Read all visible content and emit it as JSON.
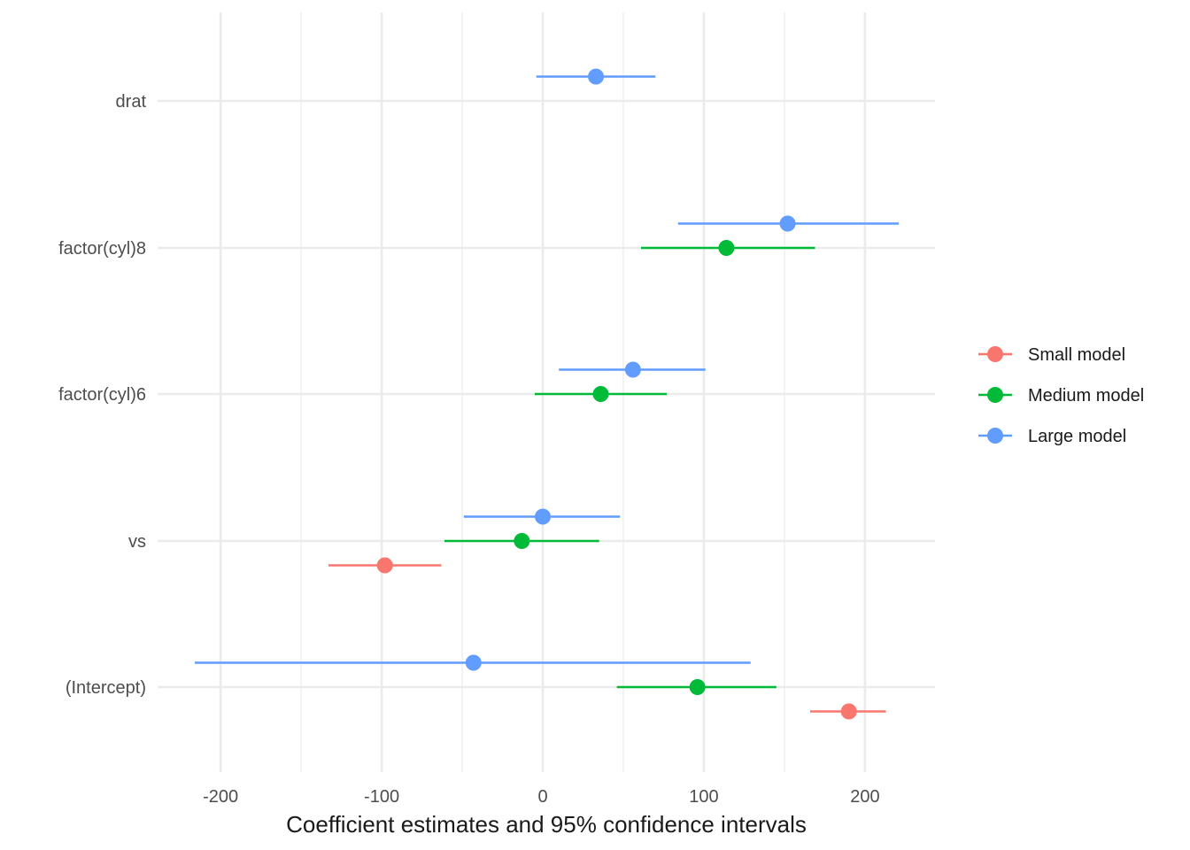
{
  "chart_data": {
    "type": "scatter",
    "subtype": "coefficient-plot",
    "title": "",
    "xlabel": "Coefficient estimates and 95% confidence intervals",
    "ylabel": "",
    "xlim": [
      -240,
      240
    ],
    "x_ticks": [
      -200,
      -100,
      0,
      100,
      200
    ],
    "x_tick_labels": [
      "-200",
      "-100",
      "0",
      "100",
      "200"
    ],
    "categories": [
      "(Intercept)",
      "vs",
      "factor(cyl)6",
      "factor(cyl)8",
      "drat"
    ],
    "grid": true,
    "legend_position": "right",
    "series": [
      {
        "name": "Small model",
        "color": "#F8766D",
        "points": [
          {
            "term": "(Intercept)",
            "estimate": 190,
            "low": 166,
            "high": 213
          },
          {
            "term": "vs",
            "estimate": -98,
            "low": -133,
            "high": -63
          }
        ]
      },
      {
        "name": "Medium model",
        "color": "#00BA38",
        "points": [
          {
            "term": "(Intercept)",
            "estimate": 96,
            "low": 46,
            "high": 145
          },
          {
            "term": "vs",
            "estimate": -13,
            "low": -61,
            "high": 35
          },
          {
            "term": "factor(cyl)6",
            "estimate": 36,
            "low": -5,
            "high": 77
          },
          {
            "term": "factor(cyl)8",
            "estimate": 114,
            "low": 61,
            "high": 169
          }
        ]
      },
      {
        "name": "Large model",
        "color": "#619CFF",
        "points": [
          {
            "term": "(Intercept)",
            "estimate": -43,
            "low": -216,
            "high": 129
          },
          {
            "term": "vs",
            "estimate": 0,
            "low": -49,
            "high": 48
          },
          {
            "term": "factor(cyl)6",
            "estimate": 56,
            "low": 10,
            "high": 101
          },
          {
            "term": "factor(cyl)8",
            "estimate": 152,
            "low": 84,
            "high": 221
          },
          {
            "term": "drat",
            "estimate": 33,
            "low": -4,
            "high": 70
          }
        ]
      }
    ]
  }
}
